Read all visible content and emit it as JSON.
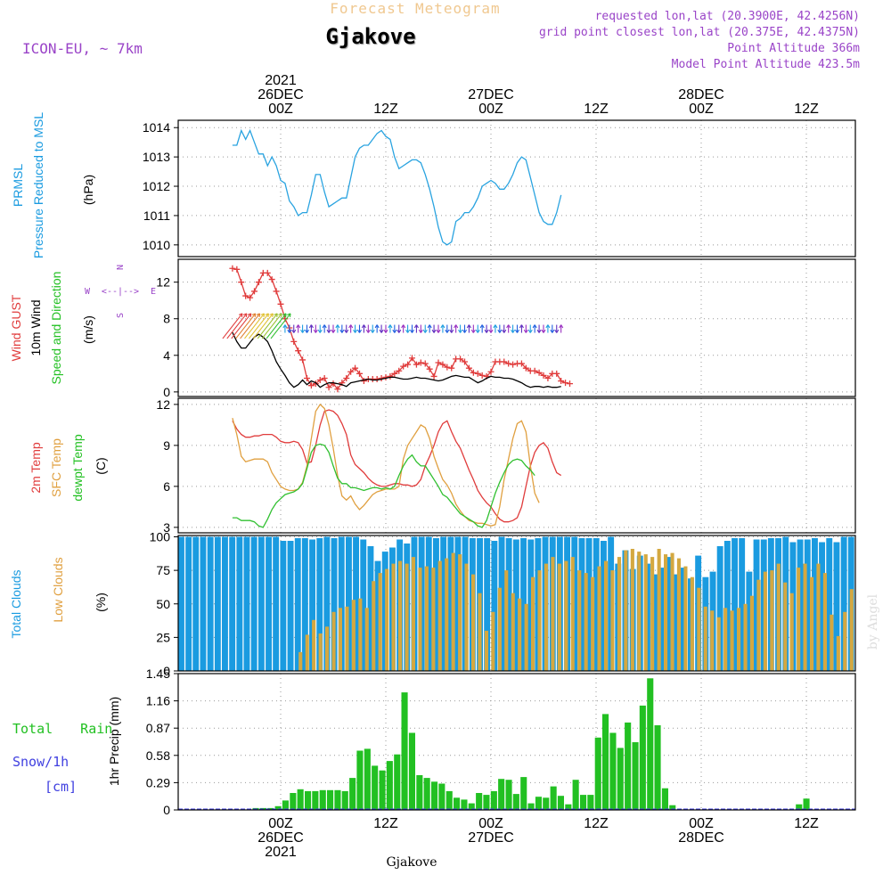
{
  "header": {
    "title": "Forecast Meteogram",
    "location": "Gjakove",
    "model": "ICON-EU, ~ 7km",
    "requested": "requested lon,lat (20.3900E, 42.4256N)",
    "grid_point": "grid point closest lon,lat (20.375E, 42.4375N)",
    "point_altitude": "Point Altitude 366m",
    "model_altitude": "Model Point Altitude 423.5m",
    "footer": "Gjakove",
    "watermark": "by Angel"
  },
  "time_axis": {
    "top_labels": [
      {
        "hour": 0,
        "lines": [
          "2021",
          "26DEC",
          "00Z"
        ]
      },
      {
        "hour": 12,
        "lines": [
          "12Z"
        ]
      },
      {
        "hour": 24,
        "lines": [
          "27DEC",
          "00Z"
        ]
      },
      {
        "hour": 36,
        "lines": [
          "12Z"
        ]
      },
      {
        "hour": 48,
        "lines": [
          "28DEC",
          "00Z"
        ]
      },
      {
        "hour": 60,
        "lines": [
          "12Z"
        ]
      }
    ],
    "bottom_labels": [
      {
        "hour": 0,
        "lines": [
          "00Z",
          "26DEC",
          "2021"
        ]
      },
      {
        "hour": 12,
        "lines": [
          "12Z"
        ]
      },
      {
        "hour": 24,
        "lines": [
          "00Z",
          "27DEC"
        ]
      },
      {
        "hour": 36,
        "lines": [
          "12Z"
        ]
      },
      {
        "hour": 48,
        "lines": [
          "00Z",
          "28DEC"
        ]
      },
      {
        "hour": 60,
        "lines": [
          "12Z"
        ]
      }
    ]
  },
  "chart_data": [
    {
      "type": "line",
      "panel": "pressure",
      "title": "PRMSL Pressure Reduced to MSL",
      "ylabel": "(hPa)",
      "y_ticks": [
        "1010",
        "1011",
        "1012",
        "1013",
        "1014"
      ],
      "ylim": [
        1009.6,
        1014.25
      ],
      "x_start_hour": -5.5,
      "x_step_hours": 0.5,
      "series": [
        {
          "name": "PRMSL",
          "color": "#29a3e0",
          "values": [
            1013.4,
            1013.4,
            1013.9,
            1013.6,
            1013.9,
            1013.5,
            1013.1,
            1013.1,
            1012.7,
            1013.0,
            1012.7,
            1012.2,
            1012.1,
            1011.5,
            1011.3,
            1011.0,
            1011.1,
            1011.1,
            1011.7,
            1012.4,
            1012.4,
            1011.8,
            1011.3,
            1011.4,
            1011.5,
            1011.6,
            1011.6,
            1012.3,
            1013.0,
            1013.3,
            1013.4,
            1013.4,
            1013.6,
            1013.8,
            1013.9,
            1013.7,
            1013.6,
            1013.0,
            1012.6,
            1012.7,
            1012.8,
            1012.9,
            1012.9,
            1012.8,
            1012.4,
            1011.9,
            1011.3,
            1010.6,
            1010.1,
            1010.0,
            1010.1,
            1010.8,
            1010.9,
            1011.1,
            1011.1,
            1011.3,
            1011.6,
            1012.0,
            1012.1,
            1012.2,
            1012.1,
            1011.9,
            1011.9,
            1012.1,
            1012.4,
            1012.8,
            1013.0,
            1012.9,
            1012.3,
            1011.7,
            1011.1,
            1010.8,
            1010.7,
            1010.7,
            1011.1,
            1011.7
          ]
        }
      ]
    },
    {
      "type": "line",
      "panel": "wind",
      "title": "Wind GUST / 10m Wind Speed and Direction",
      "ylabel": "(m/s)",
      "compass": [
        "N",
        "W",
        "E",
        "S"
      ],
      "y_ticks": [
        "0",
        "4",
        "8",
        "12"
      ],
      "ylim": [
        -0.5,
        14.5
      ],
      "x_start_hour": -5.5,
      "x_step_hours": 0.5,
      "series": [
        {
          "name": "Wind GUST",
          "color": "#e03c3c",
          "values": [
            13.5,
            13.4,
            12.0,
            10.5,
            10.3,
            11.0,
            12.0,
            13.0,
            13.0,
            12.3,
            11.0,
            9.6,
            8.0,
            7.0,
            5.5,
            4.5,
            3.5,
            1.5,
            0.7,
            0.9,
            1.3,
            1.5,
            0.5,
            0.9,
            0.3,
            1.0,
            1.5,
            2.2,
            2.6,
            2.0,
            1.2,
            1.4,
            1.4,
            1.4,
            1.5,
            1.6,
            1.7,
            2.0,
            2.3,
            2.8,
            3.0,
            3.7,
            3.0,
            3.2,
            3.1,
            2.5,
            1.7,
            3.2,
            3.0,
            2.7,
            2.6,
            3.6,
            3.6,
            3.3,
            2.6,
            2.1,
            2.0,
            1.8,
            1.7,
            2.2,
            3.3,
            3.3,
            3.3,
            3.1,
            3.0,
            3.1,
            3.1,
            2.6,
            2.3,
            2.3,
            2.1,
            1.8,
            1.5,
            2.0,
            2.0,
            1.2,
            1.0,
            0.9
          ]
        },
        {
          "name": "10m Wind",
          "color": "#000000",
          "values": [
            6.5,
            5.5,
            4.8,
            4.8,
            5.4,
            6.0,
            6.3,
            6.0,
            5.5,
            4.5,
            3.3,
            2.5,
            1.8,
            1.0,
            0.5,
            0.8,
            1.3,
            0.8,
            1.2,
            1.0,
            0.5,
            0.8,
            1.0,
            1.0,
            0.9,
            0.8,
            0.6,
            1.0,
            1.1,
            1.2,
            1.3,
            1.4,
            1.3,
            1.3,
            1.4,
            1.5,
            1.6,
            1.6,
            1.5,
            1.4,
            1.4,
            1.5,
            1.6,
            1.5,
            1.5,
            1.4,
            1.3,
            1.2,
            1.3,
            1.5,
            1.7,
            1.8,
            1.7,
            1.6,
            1.6,
            1.3,
            1.0,
            1.2,
            1.5,
            1.7,
            1.6,
            1.6,
            1.5,
            1.5,
            1.4,
            1.2,
            1.0,
            0.7,
            0.5,
            0.6,
            0.6,
            0.5,
            0.6,
            0.5,
            0.5,
            0.6
          ]
        }
      ]
    },
    {
      "type": "line",
      "panel": "temperature",
      "title": "2m Temp / SFC Temp / dewpt Temp",
      "ylabel": "(C)",
      "y_ticks": [
        "3",
        "6",
        "9",
        "12"
      ],
      "ylim": [
        2.6,
        12.45
      ],
      "x_start_hour": -5.5,
      "x_step_hours": 0.5,
      "series": [
        {
          "name": "2m Temp",
          "color": "#e03c3c",
          "values": [
            10.8,
            10.2,
            9.8,
            9.6,
            9.6,
            9.7,
            9.7,
            9.8,
            9.8,
            9.8,
            9.6,
            9.3,
            9.2,
            9.2,
            9.3,
            9.2,
            8.7,
            7.7,
            7.8,
            9.0,
            10.5,
            11.5,
            11.6,
            11.5,
            11.2,
            10.6,
            9.8,
            8.3,
            7.6,
            7.3,
            7.0,
            6.6,
            6.3,
            6.1,
            6.0,
            6.0,
            6.1,
            6.2,
            6.2,
            6.1,
            6.1,
            6.0,
            6.1,
            6.5,
            7.5,
            8.2,
            9.0,
            10.0,
            10.6,
            10.8,
            10.0,
            9.3,
            8.8,
            8.0,
            7.2,
            6.5,
            5.7,
            5.2,
            4.8,
            4.5,
            4.0,
            3.6,
            3.4,
            3.4,
            3.5,
            3.7,
            4.5,
            6.0,
            7.5,
            8.5,
            9.0,
            9.2,
            8.8,
            7.8,
            7.0,
            6.8
          ]
        },
        {
          "name": "SFC Temp",
          "color": "#e0a040",
          "values": [
            11.0,
            9.8,
            8.2,
            7.8,
            7.9,
            8.0,
            8.0,
            8.0,
            7.8,
            7.0,
            6.5,
            6.0,
            5.8,
            5.7,
            5.7,
            5.8,
            6.3,
            7.5,
            9.5,
            11.5,
            12.0,
            11.7,
            10.5,
            8.8,
            6.8,
            5.3,
            5.0,
            5.3,
            4.7,
            4.3,
            4.6,
            5.0,
            5.4,
            5.6,
            5.7,
            5.8,
            5.8,
            5.8,
            6.0,
            8.0,
            9.0,
            9.5,
            10.0,
            10.5,
            10.3,
            9.5,
            8.2,
            7.3,
            6.5,
            6.1,
            5.5,
            4.7,
            4.2,
            3.8,
            3.5,
            3.4,
            3.3,
            3.3,
            3.2,
            3.1,
            3.2,
            4.5,
            6.5,
            8.0,
            9.5,
            10.6,
            10.8,
            10.0,
            7.5,
            5.5,
            4.8
          ]
        },
        {
          "name": "dewpt Temp",
          "color": "#30c030",
          "values": [
            3.7,
            3.7,
            3.5,
            3.5,
            3.5,
            3.4,
            3.1,
            3.0,
            3.6,
            4.3,
            4.8,
            5.1,
            5.4,
            5.5,
            5.6,
            5.8,
            6.2,
            7.3,
            8.5,
            9.0,
            9.1,
            9.0,
            8.5,
            7.5,
            6.6,
            6.2,
            6.2,
            5.9,
            5.9,
            5.8,
            5.7,
            5.8,
            5.9,
            5.9,
            5.8,
            5.9,
            5.8,
            6.0,
            6.8,
            7.5,
            8.0,
            8.3,
            7.8,
            7.5,
            7.5,
            7.0,
            6.5,
            6.0,
            5.4,
            5.2,
            4.8,
            4.4,
            4.0,
            3.8,
            3.6,
            3.4,
            3.1,
            3.0,
            3.5,
            4.5,
            5.5,
            6.3,
            7.0,
            7.6,
            7.9,
            8.0,
            7.9,
            7.5,
            7.2,
            6.8
          ]
        }
      ]
    },
    {
      "type": "bar",
      "panel": "clouds",
      "title": "Total Clouds / Low Clouds",
      "ylabel": "(%)",
      "y_ticks": [
        "0",
        "25",
        "50",
        "75",
        "100"
      ],
      "ylim": [
        0,
        101
      ],
      "x_start_hour": -5.5,
      "x_step_hours": 0.5,
      "series": [
        {
          "name": "Total Clouds",
          "color": "#1a9be0",
          "values": [
            100,
            100,
            100,
            100,
            100,
            100,
            100,
            100,
            100,
            100,
            100,
            100,
            100,
            100,
            97,
            97,
            99,
            99,
            98,
            99,
            100,
            99,
            100,
            100,
            100,
            98,
            93,
            82,
            89,
            92,
            98,
            95,
            100,
            100,
            100,
            99,
            100,
            100,
            100,
            100,
            99,
            99,
            99,
            97,
            100,
            99,
            98,
            99,
            98,
            99,
            100,
            100,
            100,
            100,
            100,
            99,
            99,
            99,
            97,
            100,
            80,
            90,
            76,
            86,
            80,
            72,
            77,
            85,
            72,
            77,
            69,
            86,
            70,
            74,
            93,
            97,
            99,
            99,
            74,
            98,
            98,
            99,
            99,
            100,
            96,
            98,
            98,
            99,
            96,
            99,
            96,
            100,
            100
          ]
        },
        {
          "name": "Low Clouds",
          "color": "#d4a840",
          "values": [
            0,
            0,
            0,
            0,
            0,
            0,
            0,
            0,
            0,
            0,
            0,
            0,
            0,
            0,
            0,
            0,
            0,
            0,
            14,
            27,
            38,
            28,
            33,
            44,
            47,
            48,
            53,
            54,
            47,
            67,
            73,
            76,
            80,
            82,
            80,
            85,
            77,
            78,
            77,
            82,
            84,
            88,
            87,
            80,
            72,
            58,
            30,
            44,
            62,
            75,
            58,
            54,
            50,
            70,
            75,
            80,
            85,
            80,
            82,
            85,
            75,
            73,
            70,
            78,
            82,
            75,
            85,
            90,
            91,
            89,
            87,
            85,
            91,
            87,
            88,
            84,
            78,
            70,
            62,
            48,
            45,
            40,
            47,
            45,
            47,
            50,
            56,
            68,
            74,
            75,
            80,
            66,
            58,
            77,
            80,
            70,
            80,
            73,
            42,
            26,
            44,
            61
          ]
        }
      ]
    },
    {
      "type": "bar",
      "panel": "precip",
      "title": "Total Rain / Snow/1h",
      "units_label": "[cm]",
      "ylabel": "1hr Precip (mm)",
      "y_ticks": [
        "0",
        "0.29",
        "0.58",
        "0.87",
        "1.16",
        "1.45"
      ],
      "ylim": [
        0,
        1.45
      ],
      "x_start_hour": -5.5,
      "x_step_hours": 0.5,
      "series": [
        {
          "name": "Total Rain",
          "color": "#22c022",
          "values": [
            0,
            0,
            0,
            0,
            0,
            0,
            0,
            0,
            0,
            0,
            0.02,
            0.02,
            0.02,
            0.04,
            0.1,
            0.18,
            0.22,
            0.2,
            0.2,
            0.21,
            0.21,
            0.21,
            0.2,
            0.34,
            0.63,
            0.65,
            0.47,
            0.42,
            0.52,
            0.59,
            1.25,
            0.82,
            0.37,
            0.34,
            0.3,
            0.28,
            0.2,
            0.13,
            0.11,
            0.07,
            0.18,
            0.16,
            0.2,
            0.33,
            0.32,
            0.17,
            0.35,
            0.07,
            0.14,
            0.13,
            0.25,
            0.15,
            0.06,
            0.32,
            0.16,
            0.16,
            0.77,
            1.02,
            0.82,
            0.66,
            0.93,
            0.72,
            1.11,
            1.4,
            0.9,
            0.23,
            0.05,
            0,
            0,
            0,
            0,
            0,
            0,
            0,
            0,
            0,
            0,
            0,
            0,
            0,
            0,
            0,
            0,
            0.06,
            0.12,
            0,
            0,
            0,
            0,
            0,
            0
          ]
        }
      ]
    }
  ],
  "colors": {
    "purple": "#9a44c8",
    "blue": "#1a9be0",
    "orange": "#e0a040",
    "red": "#e03c3c",
    "green": "#22c022",
    "snowBlue": "#4040e0",
    "titleOrange": "#f0c890"
  }
}
